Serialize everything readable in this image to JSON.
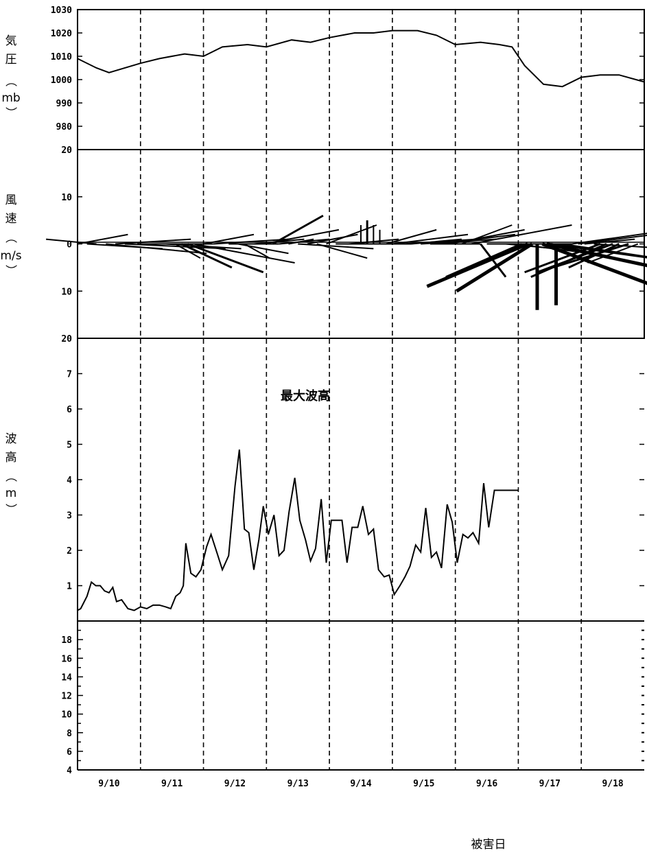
{
  "chart_data": [
    {
      "type": "line",
      "title": "",
      "ylabel": "気圧（mb）",
      "ylabel_chars": [
        "気",
        "圧",
        "（",
        "mb",
        "）"
      ],
      "ylim": [
        970,
        1030
      ],
      "yticks": [
        980,
        990,
        1000,
        1010,
        1020,
        1030
      ],
      "ytick_labels": [
        "980",
        "990",
        "1000",
        "1010",
        "1020",
        "1030"
      ],
      "x": [
        9.5,
        9.8,
        10.0,
        10.5,
        10.8,
        11.2,
        11.5,
        11.8,
        12.2,
        12.5,
        12.9,
        13.2,
        13.5,
        13.9,
        14.2,
        14.5,
        14.9,
        15.2,
        15.5,
        15.9,
        16.2,
        16.4,
        16.6,
        16.9,
        17.2,
        17.5,
        17.8,
        18.1,
        18.5
      ],
      "y": [
        1009,
        1005,
        1003,
        1007,
        1009,
        1011,
        1010,
        1014,
        1015,
        1014,
        1017,
        1016,
        1018,
        1020,
        1020,
        1021,
        1021,
        1019,
        1015,
        1016,
        1015,
        1014,
        1006,
        998,
        997,
        1001,
        1002,
        1002,
        999
      ]
    },
    {
      "type": "wind-vector",
      "ylabel": "風速（m/s）",
      "ylabel_chars": [
        "風",
        "速",
        "（",
        "m/s",
        "）"
      ],
      "ylim": [
        -20,
        20
      ],
      "yticks": [
        20,
        10,
        0,
        10,
        20
      ],
      "ytick_labels": [
        "20",
        "10",
        "0",
        "10",
        "20"
      ],
      "vectors": [
        {
          "x": 9.5,
          "u": 2,
          "v": 2
        },
        {
          "x": 9.65,
          "u": 3,
          "v": -1
        },
        {
          "x": 9.8,
          "u": -2,
          "v": 1
        },
        {
          "x": 9.95,
          "u": 4,
          "v": -2
        },
        {
          "x": 10.1,
          "u": 3,
          "v": 1
        },
        {
          "x": 10.25,
          "u": 4,
          "v": -1
        },
        {
          "x": 10.45,
          "u": 3,
          "v": 0
        },
        {
          "x": 10.6,
          "u": 2,
          "v": 0
        },
        {
          "x": 10.9,
          "u": 3,
          "v": -1
        },
        {
          "x": 11.05,
          "u": 1,
          "v": -3
        },
        {
          "x": 11.15,
          "u": 2,
          "v": -5
        },
        {
          "x": 11.25,
          "u": 3,
          "v": -6
        },
        {
          "x": 11.35,
          "u": 4,
          "v": -4
        },
        {
          "x": 11.5,
          "u": 2,
          "v": 2
        },
        {
          "x": 11.65,
          "u": 3,
          "v": 1
        },
        {
          "x": 11.9,
          "u": 2,
          "v": 0
        },
        {
          "x": 12.05,
          "u": 2,
          "v": -2
        },
        {
          "x": 12.15,
          "u": 1,
          "v": -3
        },
        {
          "x": 12.3,
          "u": 2,
          "v": 1
        },
        {
          "x": 12.45,
          "u": 3,
          "v": 3
        },
        {
          "x": 12.6,
          "u": 2,
          "v": 6
        },
        {
          "x": 12.7,
          "u": 2,
          "v": 1
        },
        {
          "x": 12.85,
          "u": 1,
          "v": 1
        },
        {
          "x": 13.0,
          "u": 3,
          "v": -1
        },
        {
          "x": 13.15,
          "u": 2,
          "v": 2
        },
        {
          "x": 13.3,
          "u": 2,
          "v": -3
        },
        {
          "x": 13.45,
          "u": 2,
          "v": 4
        },
        {
          "x": 13.6,
          "u": 3,
          "v": 0
        },
        {
          "x": 13.8,
          "u": 2,
          "v": 1
        },
        {
          "x": 14.0,
          "u": 0,
          "v": 4
        },
        {
          "x": 14.1,
          "u": 0,
          "v": 5
        },
        {
          "x": 14.2,
          "u": 0,
          "v": 4
        },
        {
          "x": 14.3,
          "u": 0,
          "v": 3
        },
        {
          "x": 14.4,
          "u": 2,
          "v": 3
        },
        {
          "x": 14.5,
          "u": 3,
          "v": 2
        },
        {
          "x": 14.65,
          "u": 3,
          "v": 1
        },
        {
          "x": 14.8,
          "u": 2,
          "v": 1
        },
        {
          "x": 14.95,
          "u": 3,
          "v": 1
        },
        {
          "x": 15.1,
          "u": 2,
          "v": 0
        },
        {
          "x": 15.25,
          "u": 3,
          "v": 2
        },
        {
          "x": 15.4,
          "u": 3,
          "v": 3
        },
        {
          "x": 15.6,
          "u": 2,
          "v": 4
        },
        {
          "x": 15.75,
          "u": 4,
          "v": 4
        },
        {
          "x": 15.9,
          "u": 1,
          "v": -7
        },
        {
          "x": 16.0,
          "u": 3,
          "v": 0
        },
        {
          "x": 16.15,
          "u": 3,
          "v": 0
        },
        {
          "x": 16.3,
          "u": 2,
          "v": -1
        },
        {
          "x": 16.45,
          "u": 3,
          "v": -2
        },
        {
          "x": 16.55,
          "u": -3,
          "v": -7
        },
        {
          "x": 16.65,
          "u": -4,
          "v": -9
        },
        {
          "x": 16.72,
          "u": -3,
          "v": -10
        },
        {
          "x": 16.8,
          "u": 0,
          "v": -14
        },
        {
          "x": 16.88,
          "u": 5,
          "v": -10
        },
        {
          "x": 16.95,
          "u": 7,
          "v": -8
        },
        {
          "x": 17.02,
          "u": 8,
          "v": -6
        },
        {
          "x": 17.1,
          "u": 0,
          "v": -13
        },
        {
          "x": 17.2,
          "u": 5,
          "v": -4
        },
        {
          "x": 17.35,
          "u": 4,
          "v": 3
        },
        {
          "x": 17.45,
          "u": 3,
          "v": 2
        },
        {
          "x": 17.55,
          "u": 2,
          "v": 1
        },
        {
          "x": 17.7,
          "u": 3,
          "v": -1
        },
        {
          "x": 17.8,
          "u": -3,
          "v": -6
        },
        {
          "x": 17.9,
          "u": -3,
          "v": -7
        },
        {
          "x": 18.0,
          "u": -3,
          "v": -6
        },
        {
          "x": 18.1,
          "u": -2,
          "v": -5
        },
        {
          "x": 18.25,
          "u": -3,
          "v": -5
        },
        {
          "x": 18.4,
          "u": -2,
          "v": -4
        }
      ]
    },
    {
      "type": "line",
      "ylabel": "波高（m）",
      "ylabel_chars": [
        "波",
        "高",
        "（",
        "m",
        "）"
      ],
      "annotation": "最大波高",
      "ylim": [
        0,
        8
      ],
      "yticks": [
        1,
        2,
        3,
        4,
        5,
        6,
        7
      ],
      "ytick_labels": [
        "1",
        "2",
        "3",
        "4",
        "5",
        "6",
        "7"
      ],
      "x": [
        9.5,
        9.55,
        9.65,
        9.72,
        9.79,
        9.86,
        9.93,
        10.0,
        10.06,
        10.12,
        10.2,
        10.3,
        10.4,
        10.5,
        10.6,
        10.7,
        10.8,
        10.9,
        10.98,
        11.06,
        11.13,
        11.18,
        11.22,
        11.3,
        11.38,
        11.46,
        11.55,
        11.62,
        11.72,
        11.8,
        11.9,
        12.0,
        12.07,
        12.15,
        12.22,
        12.3,
        12.38,
        12.45,
        12.53,
        12.62,
        12.7,
        12.78,
        12.86,
        12.95,
        13.03,
        13.12,
        13.2,
        13.28,
        13.37,
        13.45,
        13.53,
        13.61,
        13.7,
        13.78,
        13.86,
        13.95,
        14.03,
        14.12,
        14.2,
        14.28,
        14.37,
        14.45,
        14.53,
        14.62,
        14.7,
        14.78,
        14.87,
        14.95,
        15.03,
        15.12,
        15.2,
        15.28,
        15.37,
        15.45,
        15.53,
        15.62,
        15.7,
        15.78,
        15.87,
        15.95,
        16.03,
        16.12,
        16.2,
        16.28,
        16.37,
        16.45,
        16.5
      ],
      "y": [
        0.3,
        0.35,
        0.7,
        1.1,
        1.0,
        1.0,
        0.85,
        0.8,
        0.95,
        0.55,
        0.6,
        0.35,
        0.3,
        0.4,
        0.35,
        0.45,
        0.45,
        0.4,
        0.35,
        0.7,
        0.8,
        1.0,
        2.2,
        1.35,
        1.25,
        1.45,
        2.1,
        2.45,
        1.9,
        1.45,
        1.85,
        3.8,
        4.85,
        2.6,
        2.5,
        1.45,
        2.3,
        3.25,
        2.45,
        3.0,
        1.85,
        2.0,
        3.1,
        4.05,
        2.85,
        2.3,
        1.7,
        2.05,
        3.45,
        1.65,
        2.85,
        2.85,
        2.85,
        1.65,
        2.65,
        2.65,
        3.25,
        2.45,
        2.6,
        1.45,
        1.25,
        1.3,
        0.75,
        1.0,
        1.25,
        1.55,
        2.15,
        1.95,
        3.2,
        1.8,
        1.95,
        1.5,
        3.3,
        2.8,
        1.65,
        2.45,
        2.35,
        2.5,
        2.2,
        3.9,
        2.65,
        3.7,
        3.7,
        3.7,
        3.7,
        3.7,
        3.7
      ]
    },
    {
      "type": "line",
      "ylim": [
        4,
        20
      ],
      "yticks": [
        4,
        6,
        8,
        10,
        12,
        14,
        16,
        18
      ],
      "ytick_labels": [
        "4",
        "6",
        "8",
        "10",
        "12",
        "14",
        "16",
        "18"
      ],
      "x": [],
      "y": []
    }
  ],
  "x_axis": {
    "xlim": [
      9.5,
      18.5
    ],
    "day_boundaries": [
      10.5,
      11.5,
      12.5,
      13.5,
      14.5,
      15.5,
      16.5,
      17.5
    ],
    "tick_labels": [
      "9/10",
      "9/11",
      "9/12",
      "9/13",
      "9/14",
      "9/15",
      "9/16",
      "9/17",
      "9/18"
    ],
    "tick_positions": [
      10,
      11,
      12,
      13,
      14,
      15,
      16,
      17,
      18
    ],
    "xlabel": "被害日"
  }
}
